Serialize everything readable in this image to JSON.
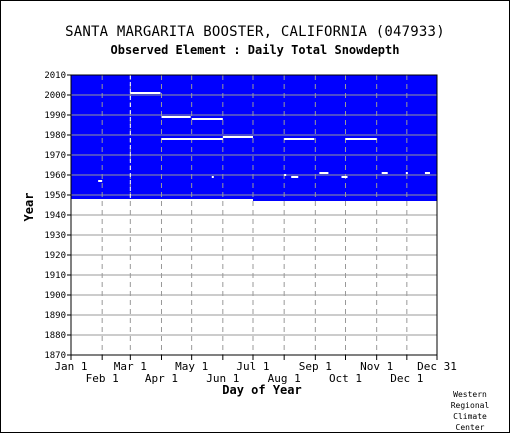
{
  "title": "SANTA MARGARITA BOOSTER, CALIFORNIA   (047933)",
  "subtitle": "Observed Element : Daily Total Snowdepth",
  "credit": [
    "Western",
    "Regional",
    "Climate",
    "Center"
  ],
  "colors": {
    "no_data": "#0000ff",
    "observed": "#ffffff",
    "background": "#ffffff",
    "grid": "#999999",
    "axis": "#000000"
  },
  "chart_data": {
    "type": "heatmap",
    "xlabel": "Day of Year",
    "ylabel": "Year",
    "xlim": [
      1,
      365
    ],
    "ylim": [
      1870,
      2010
    ],
    "x_ticks_upper": [
      {
        "label": "Jan 1",
        "day": 1
      },
      {
        "label": "Mar 1",
        "day": 60
      },
      {
        "label": "May 1",
        "day": 121
      },
      {
        "label": "Jul 1",
        "day": 182
      },
      {
        "label": "Sep 1",
        "day": 244
      },
      {
        "label": "Nov 1",
        "day": 305
      },
      {
        "label": "Dec 31",
        "day": 365
      }
    ],
    "x_ticks_lower": [
      {
        "label": "Feb 1",
        "day": 32
      },
      {
        "label": "Apr 1",
        "day": 91
      },
      {
        "label": "Jun 1",
        "day": 152
      },
      {
        "label": "Aug 1",
        "day": 213
      },
      {
        "label": "Oct 1",
        "day": 274
      },
      {
        "label": "Dec 1",
        "day": 335
      }
    ],
    "y_ticks": [
      1870,
      1880,
      1890,
      1900,
      1910,
      1920,
      1930,
      1940,
      1950,
      1960,
      1970,
      1980,
      1990,
      2000,
      2010
    ],
    "grid": true,
    "no_data_regions": [
      {
        "day_start": 1,
        "day_end": 182,
        "year_start": 1948,
        "year_end": 2010
      },
      {
        "day_start": 182,
        "day_end": 365,
        "year_start": 1947,
        "year_end": 2010
      }
    ],
    "observed_segments": [
      {
        "year": 2001,
        "day_start": 60,
        "day_end": 90
      },
      {
        "year": 1989,
        "day_start": 91,
        "day_end": 120
      },
      {
        "year": 1988,
        "day_start": 121,
        "day_end": 152
      },
      {
        "year": 1978,
        "day_start": 91,
        "day_end": 152
      },
      {
        "year": 1979,
        "day_start": 152,
        "day_end": 182
      },
      {
        "year": 1978,
        "day_start": 213,
        "day_end": 243
      },
      {
        "year": 1978,
        "day_start": 274,
        "day_end": 305
      },
      {
        "year": 1960,
        "day_start": 213,
        "day_end": 215
      },
      {
        "year": 1959,
        "day_start": 220,
        "day_end": 227
      },
      {
        "year": 1961,
        "day_start": 248,
        "day_end": 257
      },
      {
        "year": 1959,
        "day_start": 270,
        "day_end": 276
      },
      {
        "year": 1961,
        "day_start": 310,
        "day_end": 316
      },
      {
        "year": 1961,
        "day_start": 334,
        "day_end": 336
      },
      {
        "year": 1961,
        "day_start": 353,
        "day_end": 358
      },
      {
        "year": 1959,
        "day_start": 141,
        "day_end": 143
      },
      {
        "year": 1957,
        "day_start": 28,
        "day_end": 32
      }
    ],
    "observed_day_lines": [
      {
        "day": 60,
        "year_start": 1948,
        "year_end": 2010
      }
    ]
  }
}
